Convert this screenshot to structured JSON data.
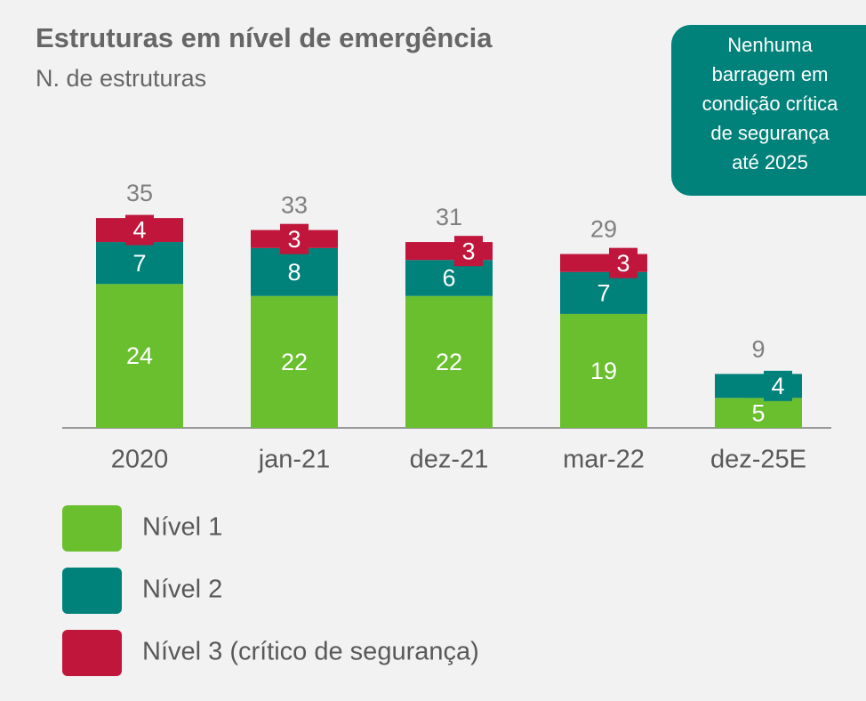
{
  "chart_data": {
    "type": "stacked-bar",
    "title": "Estruturas em nível de emergência",
    "subtitle": "N. de estruturas",
    "callout": [
      "Nenhuma",
      "barragem em",
      "condição crítica",
      "de segurança",
      "até 2025"
    ],
    "categories": [
      "2020",
      "jan-21",
      "dez-21",
      "mar-22",
      "dez-25E"
    ],
    "series": [
      {
        "name": "Nível 1",
        "color": "#6abf2e",
        "values": [
          24,
          22,
          22,
          19,
          5
        ]
      },
      {
        "name": "Nível 2",
        "color": "#00827a",
        "values": [
          7,
          8,
          6,
          7,
          4
        ]
      },
      {
        "name": "Nível 3 (crítico de segurança)",
        "color": "#c0163c",
        "values": [
          4,
          3,
          3,
          3,
          null
        ]
      }
    ],
    "totals": [
      35,
      33,
      31,
      29,
      9
    ]
  }
}
